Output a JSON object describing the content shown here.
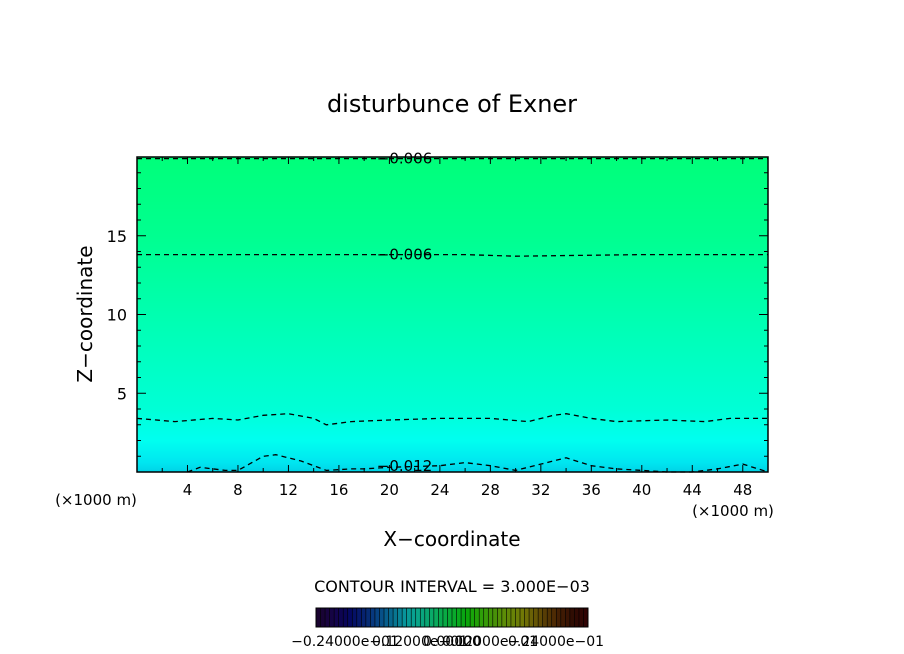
{
  "chart_data": {
    "type": "heatmap",
    "title": "disturbunce of Exner",
    "xlabel": "X−coordinate",
    "ylabel": "Z−coordinate",
    "x_unit_left": "(×1000 m)",
    "x_unit_right": "(×1000 m)",
    "xlim": [
      0,
      50
    ],
    "ylim": [
      0,
      20
    ],
    "x_ticks": [
      4,
      8,
      12,
      16,
      20,
      24,
      28,
      32,
      36,
      40,
      44,
      48
    ],
    "y_ticks": [
      5,
      10,
      15
    ],
    "contour_interval_text": "CONTOUR INTERVAL = 3.000E−03",
    "contours": [
      {
        "level": -0.006,
        "label": "−0.006",
        "label_x": 19,
        "points": [
          [
            0,
            19.9
          ],
          [
            10,
            19.9
          ],
          [
            20,
            19.9
          ],
          [
            30,
            19.9
          ],
          [
            40,
            19.9
          ],
          [
            50,
            19.9
          ]
        ]
      },
      {
        "level": -0.006,
        "label": "−0.006",
        "label_x": 19,
        "points": [
          [
            0,
            13.8
          ],
          [
            10,
            13.8
          ],
          [
            20,
            13.8
          ],
          [
            26,
            13.8
          ],
          [
            30,
            13.7
          ],
          [
            40,
            13.8
          ],
          [
            50,
            13.8
          ]
        ]
      },
      {
        "level": -0.009,
        "label": "",
        "label_x": null,
        "points": [
          [
            0,
            3.4
          ],
          [
            3,
            3.2
          ],
          [
            6,
            3.4
          ],
          [
            8,
            3.3
          ],
          [
            10,
            3.6
          ],
          [
            12,
            3.7
          ],
          [
            14,
            3.4
          ],
          [
            15,
            3.0
          ],
          [
            17,
            3.2
          ],
          [
            20,
            3.3
          ],
          [
            24,
            3.4
          ],
          [
            28,
            3.4
          ],
          [
            31,
            3.2
          ],
          [
            33,
            3.6
          ],
          [
            34,
            3.7
          ],
          [
            36,
            3.4
          ],
          [
            38,
            3.2
          ],
          [
            42,
            3.3
          ],
          [
            45,
            3.2
          ],
          [
            47,
            3.4
          ],
          [
            50,
            3.4
          ]
        ]
      },
      {
        "level": -0.012,
        "label": "−0.012",
        "label_x": 19,
        "points": [
          [
            4,
            0
          ],
          [
            5,
            0.3
          ],
          [
            7,
            0.1
          ],
          [
            8,
            0.1
          ],
          [
            10,
            1.0
          ],
          [
            11,
            1.1
          ],
          [
            13,
            0.7
          ],
          [
            15,
            0.1
          ],
          [
            17,
            0.2
          ],
          [
            18,
            0.2
          ],
          [
            20,
            0.3
          ],
          [
            24,
            0.4
          ],
          [
            26,
            0.6
          ],
          [
            28,
            0.4
          ],
          [
            30,
            0.1
          ],
          [
            32,
            0.5
          ],
          [
            34,
            0.9
          ],
          [
            36,
            0.4
          ],
          [
            38,
            0.2
          ],
          [
            40,
            0.1
          ],
          [
            42,
            0
          ],
          [
            44,
            0
          ],
          [
            46,
            0.2
          ],
          [
            48,
            0.5
          ],
          [
            50,
            0
          ]
        ]
      }
    ],
    "colorbar": {
      "tick_labels": [
        "−0.24000e−01",
        "0.12000e−01",
        "0.00000",
        "0.12000e−01",
        "0.24000e−01"
      ]
    }
  }
}
